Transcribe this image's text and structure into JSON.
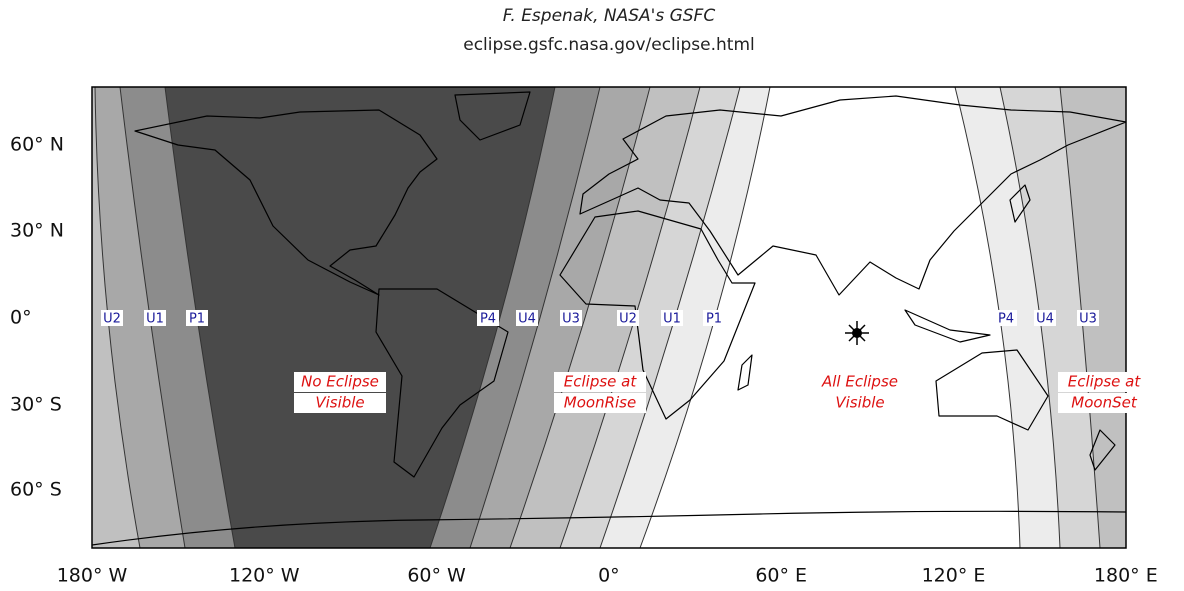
{
  "header": {
    "author": "F. Espenak, NASA's GSFC",
    "url": "eclipse.gsfc.nasa.gov/eclipse.html"
  },
  "axes": {
    "latitude_labels": [
      "60° N",
      "30° N",
      "0°",
      "30° S",
      "60° S"
    ],
    "longitude_labels": [
      "180° W",
      "120° W",
      "60° W",
      "0°",
      "60° E",
      "120° E",
      "180° E"
    ]
  },
  "contact_labels": [
    "U2",
    "U1",
    "P1",
    "P4",
    "U4",
    "U3",
    "U2",
    "U1",
    "P1",
    "P4",
    "U4",
    "U3"
  ],
  "regions": [
    {
      "lines": [
        "No Eclipse",
        "Visible"
      ]
    },
    {
      "lines": [
        "Eclipse at",
        "MoonRise"
      ]
    },
    {
      "lines": [
        "All Eclipse",
        "Visible"
      ]
    },
    {
      "lines": [
        "Eclipse at",
        "MoonSet"
      ]
    }
  ]
}
